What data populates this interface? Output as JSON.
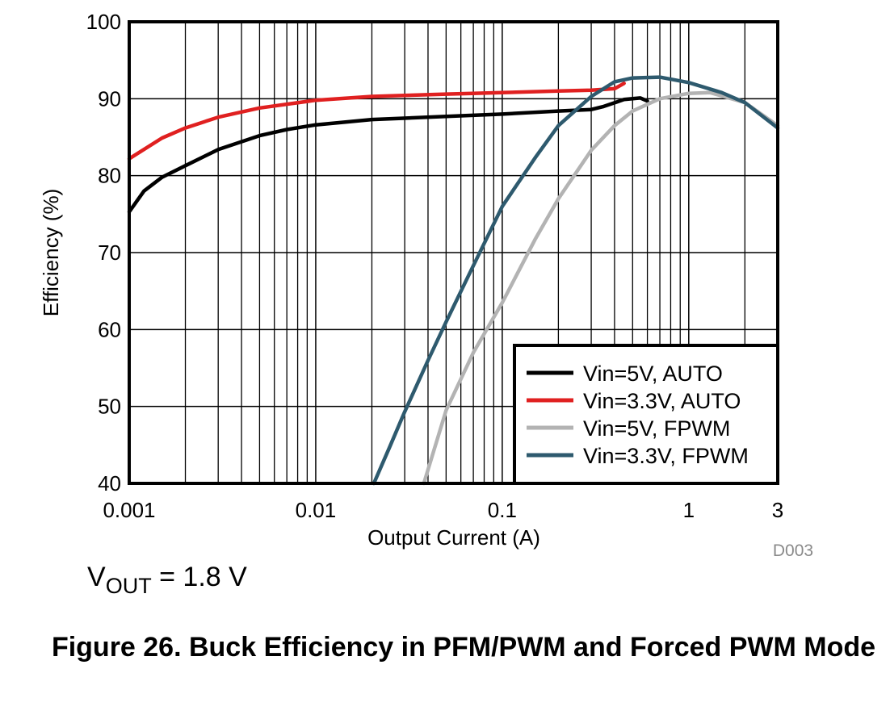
{
  "chart_data": {
    "type": "line",
    "xlabel": "Output Current (A)",
    "ylabel": "Efficiency (%)",
    "x_scale": "log",
    "xlim": [
      0.001,
      3
    ],
    "ylim": [
      40,
      100
    ],
    "x_ticks": [
      0.001,
      0.01,
      0.1,
      1,
      3
    ],
    "x_tick_labels": [
      "0.001",
      "0.01",
      "0.1",
      "1",
      "3"
    ],
    "y_ticks": [
      40,
      50,
      60,
      70,
      80,
      90,
      100
    ],
    "y_tick_labels": [
      "40",
      "50",
      "60",
      "70",
      "80",
      "90",
      "100"
    ],
    "grid": true,
    "legend_position": "bottom-right",
    "code_label": "D003",
    "series": [
      {
        "name": "Vin=5V, AUTO",
        "color": "#000000",
        "x": [
          0.001,
          0.0012,
          0.0015,
          0.002,
          0.003,
          0.005,
          0.007,
          0.01,
          0.02,
          0.05,
          0.1,
          0.2,
          0.3,
          0.35,
          0.45,
          0.55,
          0.6
        ],
        "y": [
          75.3,
          78,
          79.8,
          81.3,
          83.4,
          85.2,
          86,
          86.6,
          87.3,
          87.7,
          88,
          88.4,
          88.6,
          89,
          89.9,
          90.1,
          89.7
        ]
      },
      {
        "name": "Vin=3.3V, AUTO",
        "color": "#e02020",
        "x": [
          0.001,
          0.0015,
          0.002,
          0.003,
          0.005,
          0.01,
          0.02,
          0.05,
          0.1,
          0.2,
          0.3,
          0.4,
          0.45
        ],
        "y": [
          82.2,
          84.9,
          86.2,
          87.6,
          88.8,
          89.8,
          90.3,
          90.6,
          90.8,
          91,
          91.1,
          91.3,
          92
        ]
      },
      {
        "name": "Vin=5V, FPWM",
        "color": "#b3b3b3",
        "x": [
          0.038,
          0.05,
          0.07,
          0.1,
          0.15,
          0.2,
          0.3,
          0.4,
          0.5,
          0.7,
          1,
          1.3,
          2,
          3
        ],
        "y": [
          40,
          49.5,
          57,
          63.5,
          71.7,
          77,
          83.3,
          86.5,
          88.4,
          90,
          90.7,
          90.8,
          89.5,
          86.5
        ]
      },
      {
        "name": "Vin=3.3V, FPWM",
        "color": "#2e5a6e",
        "x": [
          0.0205,
          0.025,
          0.03,
          0.04,
          0.05,
          0.07,
          0.1,
          0.15,
          0.2,
          0.3,
          0.4,
          0.5,
          0.7,
          1,
          1.5,
          2,
          3
        ],
        "y": [
          40,
          44.8,
          49.3,
          56,
          61,
          68.3,
          76,
          82.3,
          86.5,
          90.3,
          92.2,
          92.7,
          92.8,
          92.1,
          90.8,
          89.5,
          86.2
        ]
      }
    ]
  },
  "condition": {
    "prefix": "V",
    "subscript": "OUT",
    "suffix": " = 1.8 V"
  },
  "caption": "Figure 26. Buck Efficiency in PFM/PWM and Forced PWM Mode"
}
